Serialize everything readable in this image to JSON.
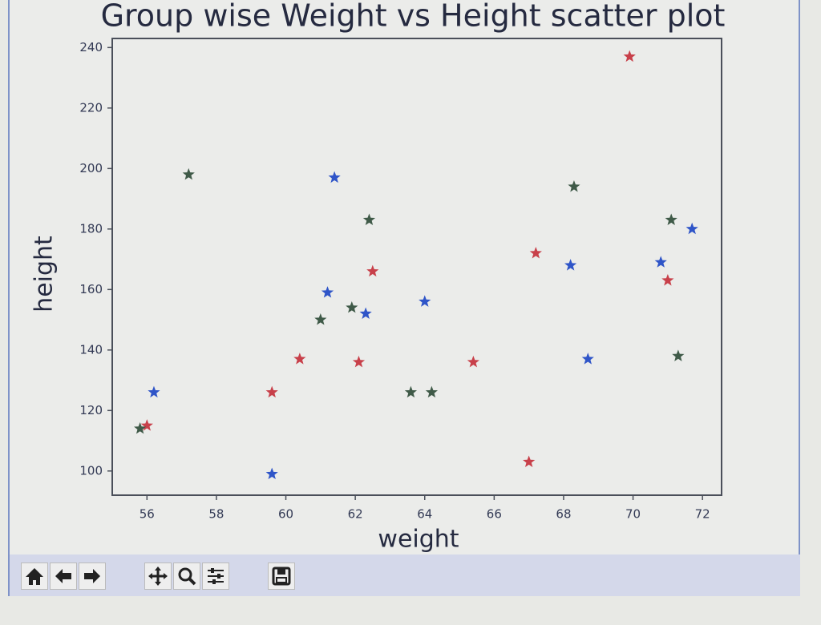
{
  "chart_data": {
    "type": "scatter",
    "title": "Group wise Weight vs Height scatter plot",
    "x_label": "weight",
    "y_label": "height",
    "xlim": [
      55.0,
      72.55
    ],
    "ylim": [
      92,
      243
    ],
    "xticks": [
      56,
      58,
      60,
      62,
      64,
      66,
      68,
      70,
      72
    ],
    "yticks": [
      100,
      120,
      140,
      160,
      180,
      200,
      220,
      240
    ],
    "marker": "star",
    "series": [
      {
        "color": "#c8404a",
        "x": [
          56.0,
          59.6,
          60.4,
          62.1,
          62.5,
          65.4,
          67.0,
          67.2,
          69.9,
          71.0
        ],
        "values": [
          115,
          126,
          137,
          136,
          166,
          136,
          103,
          172,
          237,
          163
        ]
      },
      {
        "color": "#2f55c8",
        "x": [
          56.2,
          59.6,
          61.4,
          61.2,
          62.3,
          64.0,
          68.2,
          68.7,
          70.8,
          71.7
        ],
        "values": [
          126,
          99,
          197,
          159,
          152,
          156,
          168,
          137,
          169,
          180
        ]
      },
      {
        "color": "#3f5a48",
        "x": [
          55.8,
          57.2,
          61.0,
          61.9,
          62.4,
          63.6,
          64.2,
          68.3,
          71.1,
          71.3
        ],
        "values": [
          114,
          198,
          150,
          154,
          183,
          126,
          126,
          194,
          183,
          138
        ]
      }
    ]
  }
}
